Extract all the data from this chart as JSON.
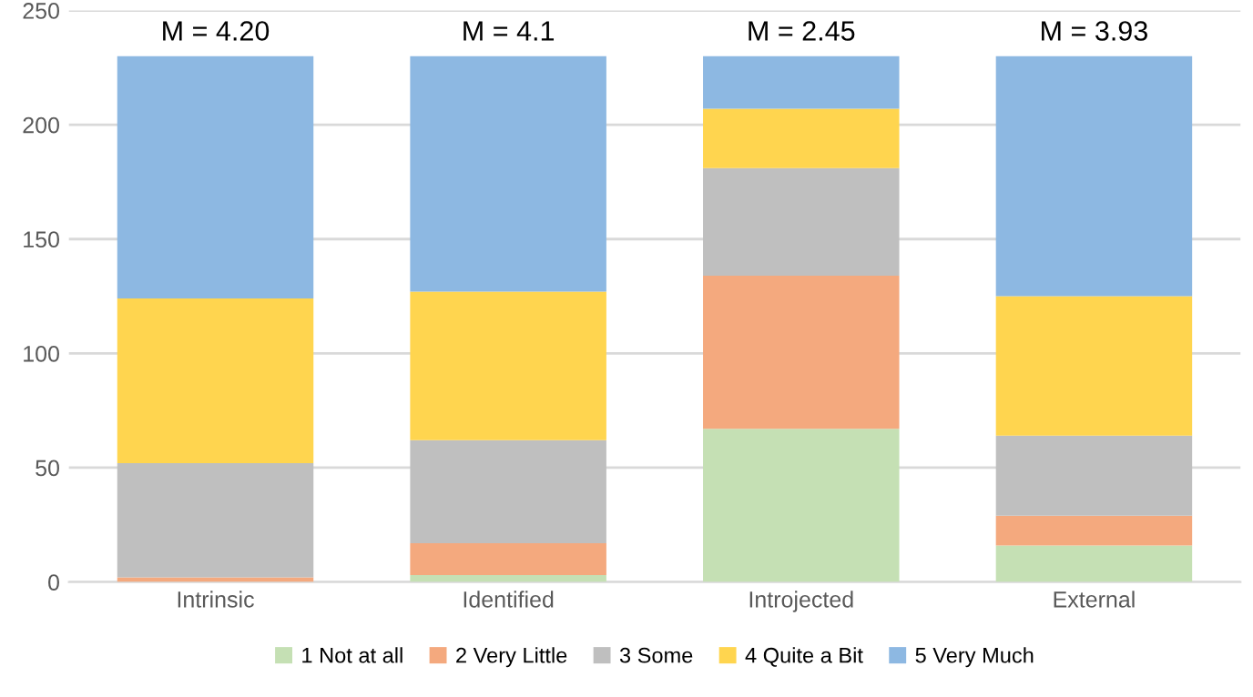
{
  "chart_data": {
    "type": "bar",
    "stacked": true,
    "categories": [
      "Intrinsic",
      "Identified",
      "Introjected",
      "External"
    ],
    "series": [
      {
        "name": "1 Not at all",
        "color": "#c5e0b4",
        "values": [
          0,
          3,
          67,
          16
        ]
      },
      {
        "name": "2 Very Little",
        "color": "#f4a97e",
        "values": [
          2,
          14,
          67,
          13
        ]
      },
      {
        "name": "3 Some",
        "color": "#bfbfbf",
        "values": [
          50,
          45,
          47,
          35
        ]
      },
      {
        "name": "4 Quite a Bit",
        "color": "#ffd54f",
        "values": [
          72,
          65,
          26,
          61
        ]
      },
      {
        "name": "5 Very Much",
        "color": "#8db8e2",
        "values": [
          106,
          103,
          23,
          105
        ]
      }
    ],
    "ylim": [
      0,
      250
    ],
    "yticks": [
      0,
      50,
      100,
      150,
      200,
      250
    ],
    "grid": "y",
    "legend": "bottom",
    "annotations": [
      "M = 4.20",
      "M = 4.1",
      "M = 2.45",
      "M = 3.93"
    ]
  }
}
